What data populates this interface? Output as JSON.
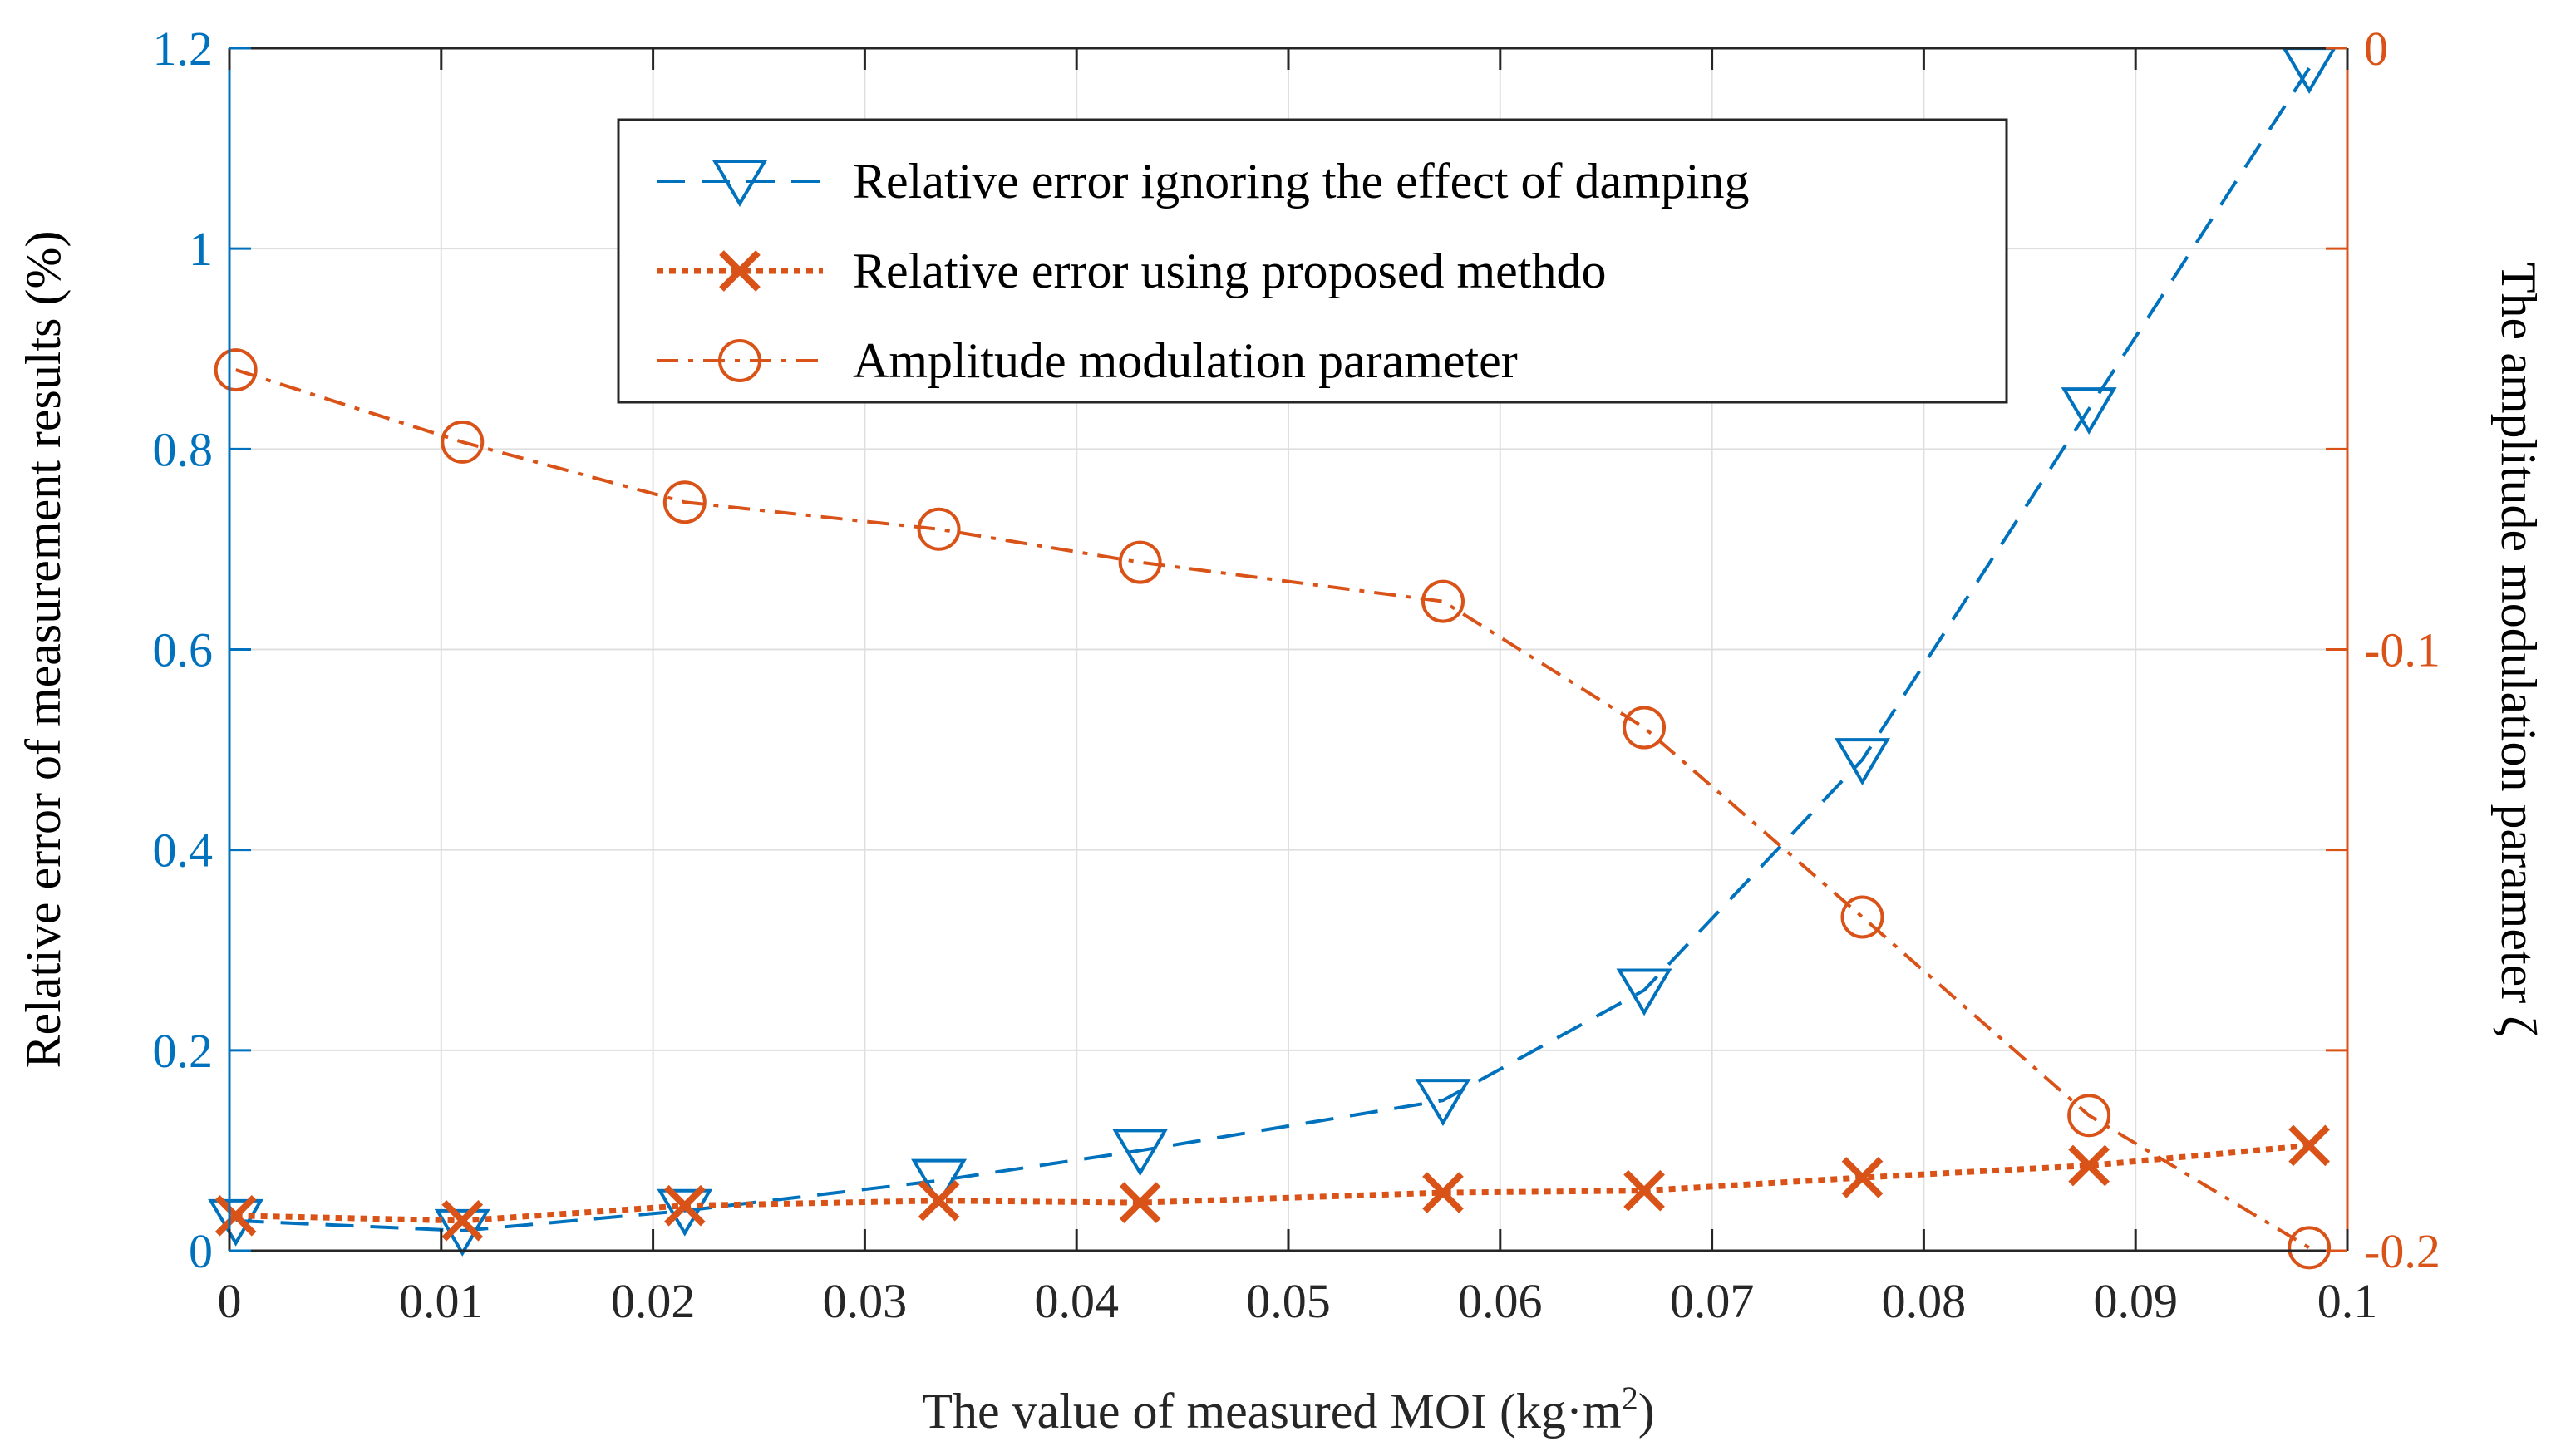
{
  "chart_data": {
    "type": "line",
    "title": "",
    "xlabel": "The value of measured MOI (kg·m",
    "xlabel_sup": "2",
    "xlabel_close": ")",
    "ylabel_left": "Relative error of measurement results (%)",
    "ylabel_right": "The amplitude modulation parameter ζ",
    "xlim": [
      0,
      0.1
    ],
    "ylim_left": [
      0,
      1.2
    ],
    "ylim_right": [
      -0.2,
      0
    ],
    "x_ticks": [
      0,
      0.01,
      0.02,
      0.03,
      0.04,
      0.05,
      0.06,
      0.07,
      0.08,
      0.09,
      0.1
    ],
    "x_tick_labels": [
      "0",
      "0.01",
      "0.02",
      "0.03",
      "0.04",
      "0.05",
      "0.06",
      "0.07",
      "0.08",
      "0.09",
      "0.1"
    ],
    "y_left_ticks": [
      0,
      0.2,
      0.4,
      0.6,
      0.8,
      1,
      1.2
    ],
    "y_left_tick_labels": [
      "0",
      "0.2",
      "0.4",
      "0.6",
      "0.8",
      "1",
      "1.2"
    ],
    "y_right_ticks": [
      -0.2,
      -0.1,
      0
    ],
    "y_right_tick_labels": [
      "-0.2",
      "-0.1",
      "0"
    ],
    "grid": true,
    "legend_position": "top-center",
    "colors": {
      "left_axis": "#0072BD",
      "right_axis": "#D95319",
      "grid": "#DFDFDF",
      "axis_black": "#262626"
    },
    "series": [
      {
        "name": "Relative error ignoring the effect of damping",
        "axis": "left",
        "color": "#0072BD",
        "marker": "triangle-down",
        "line_style": "dashed",
        "x": [
          0.0003,
          0.011,
          0.0215,
          0.0335,
          0.043,
          0.0573,
          0.0668,
          0.0771,
          0.0878,
          0.0982
        ],
        "y": [
          0.03,
          0.02,
          0.04,
          0.07,
          0.1,
          0.15,
          0.26,
          0.49,
          0.84,
          1.18
        ]
      },
      {
        "name": "Relative error using proposed methdo",
        "axis": "left",
        "color": "#D95319",
        "marker": "x",
        "line_style": "dotted",
        "x": [
          0.0003,
          0.011,
          0.0215,
          0.0335,
          0.043,
          0.0573,
          0.0668,
          0.0771,
          0.0878,
          0.0982
        ],
        "y": [
          0.035,
          0.03,
          0.045,
          0.05,
          0.048,
          0.058,
          0.06,
          0.073,
          0.085,
          0.105
        ]
      },
      {
        "name": "Amplitude modulation parameter",
        "axis": "right",
        "color": "#D95319",
        "marker": "circle",
        "line_style": "dash-dot",
        "x": [
          0.0003,
          0.011,
          0.0215,
          0.0335,
          0.043,
          0.0573,
          0.0668,
          0.0771,
          0.0878,
          0.0982
        ],
        "y": [
          -0.0535,
          -0.0655,
          -0.0755,
          -0.08,
          -0.0855,
          -0.092,
          -0.113,
          -0.1445,
          -0.1775,
          -0.1995
        ]
      }
    ]
  }
}
